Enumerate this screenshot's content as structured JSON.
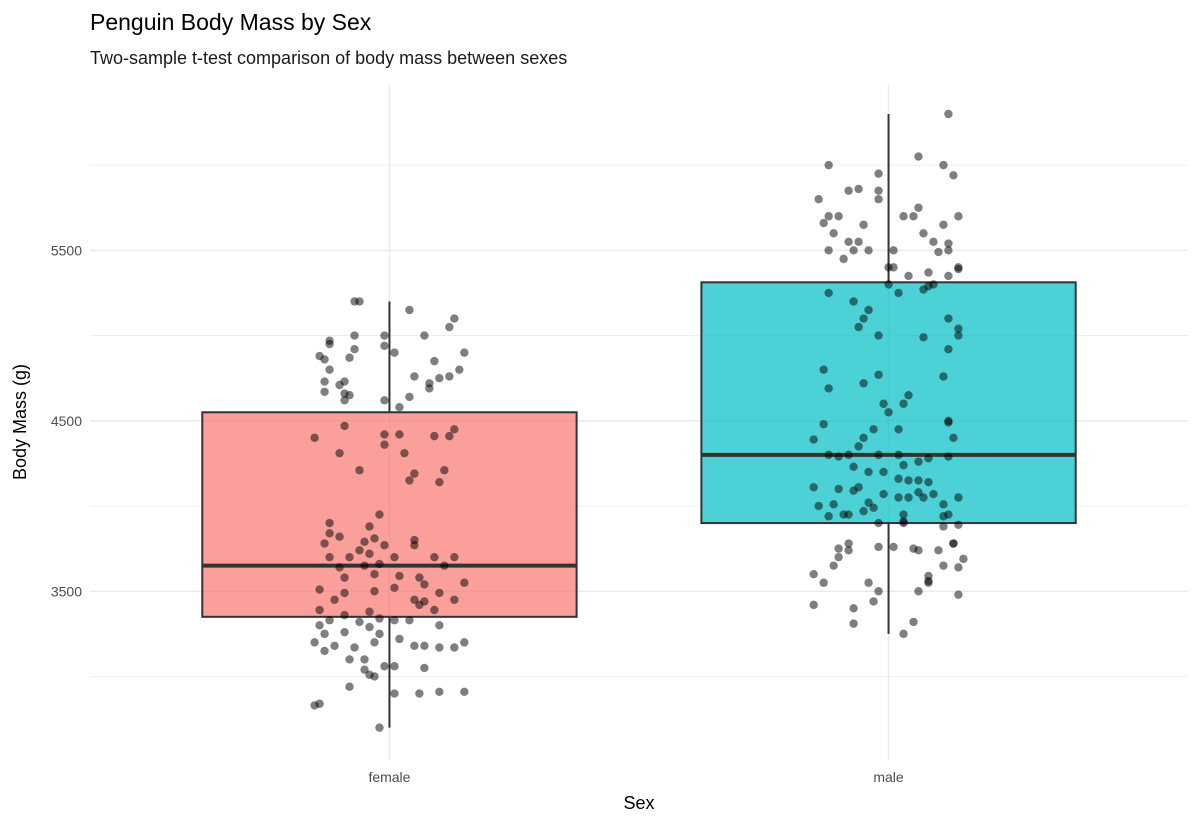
{
  "chart_data": {
    "type": "boxplot",
    "title": "Penguin Body Mass by Sex",
    "subtitle": "Two-sample t-test comparison of body mass between sexes",
    "xlabel": "Sex",
    "ylabel": "Body Mass (g)",
    "categories": [
      "female",
      "male"
    ],
    "y_ticks": [
      3500,
      4500,
      5500
    ],
    "y_tick_labels": [
      "3500",
      "4500",
      "5500"
    ],
    "y_minor_grid": [
      3000,
      4000,
      5000,
      6000
    ],
    "ylim": [
      2510,
      6470
    ],
    "xlim": [
      0.4,
      2.6
    ],
    "grid": true,
    "legend": "none",
    "colors": {
      "female": "#F8766D",
      "male": "#00BFC4",
      "points": "#000000",
      "outline": "#333333"
    },
    "boxes": [
      {
        "category": "female",
        "whisker_low": 2700,
        "q1": 3350,
        "median": 3650,
        "q3": 4550,
        "whisker_high": 5200
      },
      {
        "category": "male",
        "whisker_low": 3250,
        "q1": 3900,
        "median": 4300,
        "q3": 5312.5,
        "whisker_high": 6300
      }
    ],
    "points": {
      "female": [
        [
          -0.06,
          5200
        ],
        [
          -0.07,
          5200
        ],
        [
          0.04,
          5150
        ],
        [
          0.13,
          5100
        ],
        [
          0.12,
          5050
        ],
        [
          -0.07,
          5000
        ],
        [
          -0.01,
          5000
        ],
        [
          0.07,
          5000
        ],
        [
          -0.12,
          4970
        ],
        [
          -0.12,
          4950
        ],
        [
          -0.01,
          4940
        ],
        [
          -0.07,
          4920
        ],
        [
          0.01,
          4900
        ],
        [
          0.15,
          4900
        ],
        [
          -0.14,
          4880
        ],
        [
          -0.08,
          4870
        ],
        [
          -0.13,
          4860
        ],
        [
          0.09,
          4850
        ],
        [
          -0.12,
          4800
        ],
        [
          0.14,
          4800
        ],
        [
          0.05,
          4760
        ],
        [
          0.1,
          4750
        ],
        [
          0.12,
          4760
        ],
        [
          -0.13,
          4730
        ],
        [
          -0.09,
          4730
        ],
        [
          0.08,
          4720
        ],
        [
          -0.1,
          4710
        ],
        [
          -0.13,
          4670
        ],
        [
          0.08,
          4690
        ],
        [
          -0.08,
          4650
        ],
        [
          -0.09,
          4660
        ],
        [
          0.04,
          4640
        ],
        [
          -0.01,
          4620
        ],
        [
          -0.09,
          4620
        ],
        [
          0.02,
          4580
        ],
        [
          0.13,
          4450
        ],
        [
          -0.09,
          4470
        ],
        [
          -0.15,
          4400
        ],
        [
          -0.01,
          4420
        ],
        [
          0.02,
          4420
        ],
        [
          0.09,
          4410
        ],
        [
          0.12,
          4410
        ],
        [
          -0.1,
          4310
        ],
        [
          0.03,
          4310
        ],
        [
          -0.01,
          4360
        ],
        [
          0.11,
          4210
        ],
        [
          -0.06,
          4210
        ],
        [
          0.05,
          4190
        ],
        [
          0.04,
          4150
        ],
        [
          0.1,
          4140
        ],
        [
          -0.02,
          3950
        ],
        [
          -0.12,
          3900
        ],
        [
          -0.04,
          3880
        ],
        [
          -0.12,
          3840
        ],
        [
          -0.1,
          3820
        ],
        [
          -0.03,
          3810
        ],
        [
          0.05,
          3800
        ],
        [
          -0.05,
          3790
        ],
        [
          -0.13,
          3780
        ],
        [
          0.05,
          3770
        ],
        [
          -0.01,
          3770
        ],
        [
          -0.06,
          3740
        ],
        [
          -0.12,
          3700
        ],
        [
          0.01,
          3700
        ],
        [
          -0.04,
          3720
        ],
        [
          -0.08,
          3700
        ],
        [
          0.09,
          3700
        ],
        [
          0.13,
          3700
        ],
        [
          0.11,
          3650
        ],
        [
          -0.02,
          3660
        ],
        [
          -0.05,
          3650
        ],
        [
          -0.1,
          3640
        ],
        [
          0.02,
          3590
        ],
        [
          -0.03,
          3600
        ],
        [
          -0.09,
          3580
        ],
        [
          0.06,
          3580
        ],
        [
          0.15,
          3550
        ],
        [
          0.07,
          3540
        ],
        [
          0.01,
          3520
        ],
        [
          -0.14,
          3510
        ],
        [
          -0.03,
          3500
        ],
        [
          -0.09,
          3490
        ],
        [
          0.1,
          3490
        ],
        [
          0.13,
          3450
        ],
        [
          -0.11,
          3450
        ],
        [
          0.05,
          3450
        ],
        [
          0.07,
          3440
        ],
        [
          0.06,
          3420
        ],
        [
          -0.14,
          3390
        ],
        [
          -0.04,
          3380
        ],
        [
          0.09,
          3390
        ],
        [
          -0.09,
          3360
        ],
        [
          -0.02,
          3340
        ],
        [
          0.01,
          3330
        ],
        [
          0.04,
          3330
        ],
        [
          -0.12,
          3330
        ],
        [
          -0.06,
          3320
        ],
        [
          -0.14,
          3300
        ],
        [
          0.1,
          3300
        ],
        [
          -0.04,
          3290
        ],
        [
          -0.13,
          3250
        ],
        [
          -0.09,
          3260
        ],
        [
          -0.02,
          3250
        ],
        [
          0.02,
          3220
        ],
        [
          0.15,
          3200
        ],
        [
          -0.15,
          3200
        ],
        [
          -0.03,
          3200
        ],
        [
          0.13,
          3170
        ],
        [
          -0.11,
          3180
        ],
        [
          0.05,
          3180
        ],
        [
          0.07,
          3180
        ],
        [
          -0.07,
          3170
        ],
        [
          0.1,
          3170
        ],
        [
          -0.13,
          3150
        ],
        [
          -0.05,
          3100
        ],
        [
          -0.08,
          3100
        ],
        [
          -0.01,
          3060
        ],
        [
          0.07,
          3050
        ],
        [
          0.01,
          3060
        ],
        [
          -0.05,
          3040
        ],
        [
          -0.04,
          3010
        ],
        [
          -0.03,
          3000
        ],
        [
          -0.08,
          2940
        ],
        [
          0.01,
          2900
        ],
        [
          0.15,
          2910
        ],
        [
          0.1,
          2910
        ],
        [
          0.06,
          2900
        ],
        [
          -0.14,
          2840
        ],
        [
          -0.15,
          2830
        ],
        [
          -0.02,
          2700
        ]
      ],
      "male": [
        [
          0.12,
          6300
        ],
        [
          -0.12,
          6000
        ],
        [
          0.06,
          6050
        ],
        [
          0.11,
          6000
        ],
        [
          -0.02,
          5950
        ],
        [
          0.13,
          5940
        ],
        [
          -0.08,
          5850
        ],
        [
          -0.02,
          5850
        ],
        [
          -0.06,
          5860
        ],
        [
          -0.14,
          5800
        ],
        [
          -0.02,
          5800
        ],
        [
          0.06,
          5750
        ],
        [
          -0.12,
          5700
        ],
        [
          -0.1,
          5700
        ],
        [
          0.03,
          5700
        ],
        [
          0.14,
          5700
        ],
        [
          0.05,
          5700
        ],
        [
          -0.13,
          5660
        ],
        [
          -0.05,
          5650
        ],
        [
          0.11,
          5650
        ],
        [
          -0.11,
          5600
        ],
        [
          0.07,
          5600
        ],
        [
          -0.08,
          5550
        ],
        [
          -0.06,
          5550
        ],
        [
          0.09,
          5550
        ],
        [
          0.12,
          5540
        ],
        [
          -0.12,
          5500
        ],
        [
          0.01,
          5500
        ],
        [
          -0.07,
          5500
        ],
        [
          -0.04,
          5500
        ],
        [
          0.12,
          5500
        ],
        [
          -0.09,
          5450
        ],
        [
          0.1,
          5490
        ],
        [
          0,
          5400
        ],
        [
          0.01,
          5400
        ],
        [
          0.14,
          5400
        ],
        [
          0.14,
          5390
        ],
        [
          0.08,
          5370
        ],
        [
          0.04,
          5350
        ],
        [
          0.12,
          5350
        ],
        [
          0.09,
          5300
        ],
        [
          0.08,
          5290
        ],
        [
          0,
          5300
        ],
        [
          0.02,
          5250
        ],
        [
          -0.12,
          5250
        ],
        [
          0.07,
          5270
        ],
        [
          -0.07,
          5200
        ],
        [
          -0.04,
          5150
        ],
        [
          0.12,
          5100
        ],
        [
          -0.05,
          5100
        ],
        [
          -0.06,
          5050
        ],
        [
          0.14,
          5040
        ],
        [
          -0.02,
          5000
        ],
        [
          0.07,
          4990
        ],
        [
          0.14,
          5000
        ],
        [
          0.12,
          4920
        ],
        [
          -0.13,
          4800
        ],
        [
          -0.02,
          4770
        ],
        [
          0.11,
          4760
        ],
        [
          -0.12,
          4690
        ],
        [
          -0.05,
          4720
        ],
        [
          0.04,
          4650
        ],
        [
          -0.01,
          4600
        ],
        [
          0.03,
          4600
        ],
        [
          0,
          4550
        ],
        [
          0.12,
          4500
        ],
        [
          0.12,
          4490
        ],
        [
          -0.13,
          4480
        ],
        [
          -0.15,
          4390
        ],
        [
          0.13,
          4400
        ],
        [
          -0.03,
          4450
        ],
        [
          0.02,
          4450
        ],
        [
          -0.05,
          4400
        ],
        [
          -0.06,
          4350
        ],
        [
          -0.08,
          4300
        ],
        [
          -0.02,
          4300
        ],
        [
          -0.12,
          4300
        ],
        [
          -0.1,
          4290
        ],
        [
          0.02,
          4300
        ],
        [
          0.08,
          4280
        ],
        [
          0.12,
          4290
        ],
        [
          0.06,
          4260
        ],
        [
          0.03,
          4240
        ],
        [
          -0.07,
          4230
        ],
        [
          -0.04,
          4200
        ],
        [
          -0.01,
          4200
        ],
        [
          0.04,
          4150
        ],
        [
          0.06,
          4150
        ],
        [
          0.08,
          4140
        ],
        [
          0.02,
          4160
        ],
        [
          -0.15,
          4110
        ],
        [
          -0.06,
          4110
        ],
        [
          -0.1,
          4100
        ],
        [
          -0.07,
          4090
        ],
        [
          -0.01,
          4070
        ],
        [
          0.06,
          4080
        ],
        [
          0.09,
          4070
        ],
        [
          0.07,
          4050
        ],
        [
          0.14,
          4050
        ],
        [
          0.02,
          4050
        ],
        [
          0.04,
          4050
        ],
        [
          -0.04,
          4020
        ],
        [
          -0.14,
          4000
        ],
        [
          -0.11,
          4010
        ],
        [
          0.11,
          4010
        ],
        [
          -0.05,
          3970
        ],
        [
          -0.03,
          3990
        ],
        [
          -0.09,
          3950
        ],
        [
          -0.08,
          3950
        ],
        [
          -0.12,
          3940
        ],
        [
          0.03,
          3950
        ],
        [
          0.11,
          3940
        ],
        [
          0.12,
          3950
        ],
        [
          0.11,
          3880
        ],
        [
          0.14,
          3890
        ],
        [
          -0.02,
          3900
        ],
        [
          0.03,
          3900
        ],
        [
          0.03,
          3910
        ],
        [
          -0.08,
          3780
        ],
        [
          0.13,
          3780
        ],
        [
          0.13,
          3780
        ],
        [
          -0.02,
          3760
        ],
        [
          0.05,
          3750
        ],
        [
          0.01,
          3760
        ],
        [
          -0.1,
          3750
        ],
        [
          0.06,
          3740
        ],
        [
          -0.08,
          3740
        ],
        [
          0.1,
          3740
        ],
        [
          -0.1,
          3700
        ],
        [
          0.15,
          3690
        ],
        [
          0.11,
          3650
        ],
        [
          0.14,
          3640
        ],
        [
          -0.11,
          3650
        ],
        [
          -0.15,
          3600
        ],
        [
          0.08,
          3590
        ],
        [
          0.08,
          3560
        ],
        [
          0.08,
          3550
        ],
        [
          -0.13,
          3550
        ],
        [
          -0.04,
          3550
        ],
        [
          -0.02,
          3500
        ],
        [
          0.06,
          3500
        ],
        [
          0.14,
          3480
        ],
        [
          -0.03,
          3440
        ],
        [
          -0.15,
          3420
        ],
        [
          -0.07,
          3400
        ],
        [
          0.05,
          3320
        ],
        [
          -0.07,
          3310
        ],
        [
          0.03,
          3250
        ]
      ]
    }
  }
}
